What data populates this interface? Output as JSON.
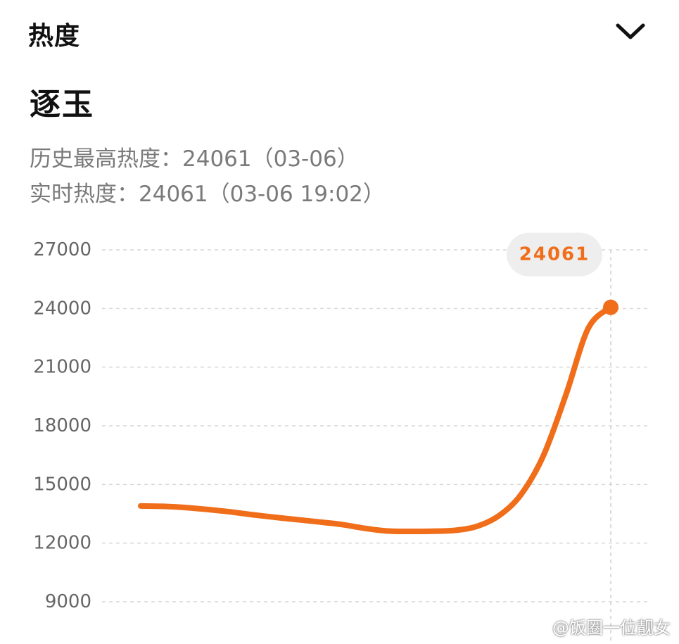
{
  "header": {
    "title": "热度"
  },
  "topic": {
    "title": "逐玉"
  },
  "stats": {
    "peak": "历史最高热度：24061（03-06）",
    "live": "实时热度：24061（03-06 19:02）"
  },
  "chart_data": {
    "type": "line",
    "title": "",
    "xlabel": "",
    "ylabel": "",
    "ylim": [
      9000,
      27000
    ],
    "yticks": [
      27000,
      24000,
      21000,
      18000,
      15000,
      12000,
      9000
    ],
    "ytick_labels": [
      "27000",
      "24000",
      "21000",
      "18000",
      "15000",
      "12000",
      "9000"
    ],
    "grid": true,
    "legend": "none",
    "color": "#f06d1a",
    "series": [
      {
        "values": [
          13900,
          13880,
          13820,
          13720,
          13600,
          13450,
          13320,
          13200,
          13080,
          12950,
          12760,
          12620,
          12600,
          12610,
          12650,
          12850,
          13400,
          14500,
          16500,
          19600,
          23000,
          24061
        ]
      }
    ],
    "callout": {
      "label": "24061",
      "value": 24061
    }
  },
  "watermark": "@饭圈一位靓女"
}
